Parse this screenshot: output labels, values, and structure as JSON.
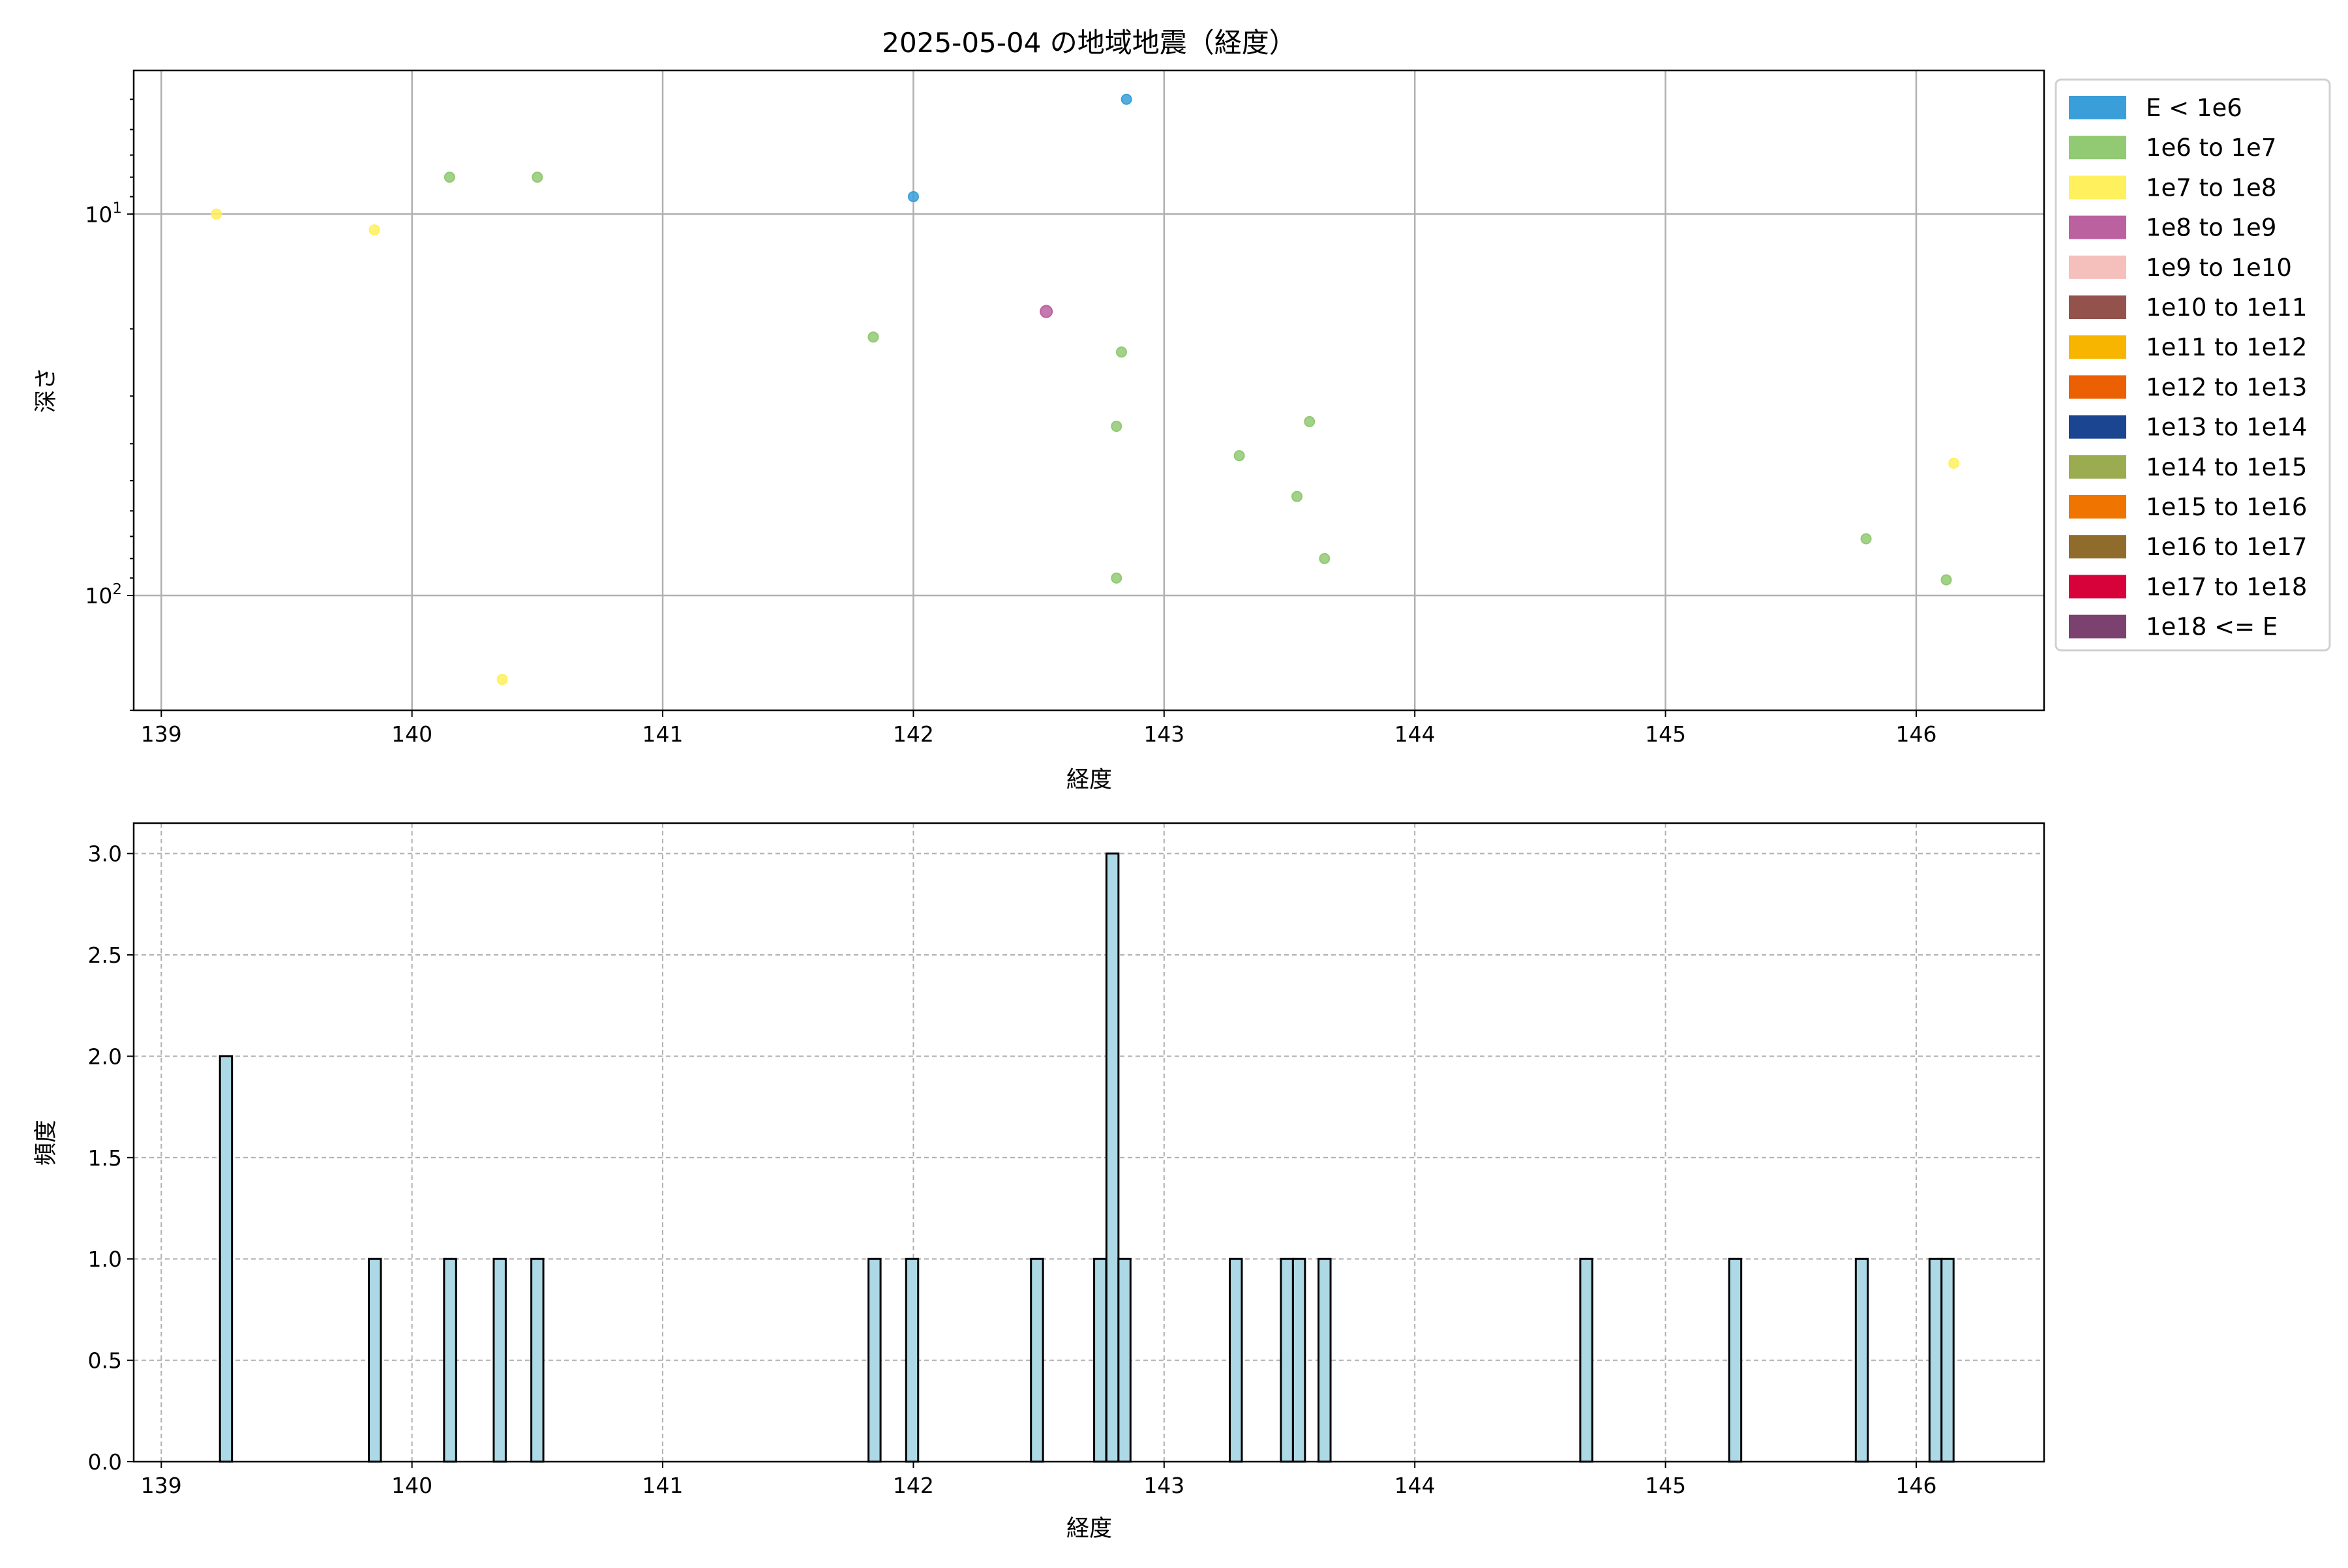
{
  "chart_data": [
    {
      "type": "scatter",
      "title": "2025-05-04 の地域地震（経度）",
      "xlabel": "経度",
      "ylabel": "深さ",
      "xlim": [
        138.89,
        146.51
      ],
      "ylim": [
        200,
        4.2
      ],
      "yscale": "log",
      "yinverted": true,
      "xticks": [
        139,
        140,
        141,
        142,
        143,
        144,
        145,
        146
      ],
      "yticks": [
        {
          "value": 10,
          "label": "10",
          "exp": "1"
        },
        {
          "value": 100,
          "label": "10",
          "exp": "2"
        }
      ],
      "grid": true,
      "legend_placement": "outside-right",
      "legend": [
        {
          "label": "E < 1e6",
          "color": "#3a9fd8"
        },
        {
          "label": "1e6 to 1e7",
          "color": "#92c973"
        },
        {
          "label": "1e7 to 1e8",
          "color": "#fff05e"
        },
        {
          "label": "1e8 to 1e9",
          "color": "#bb61a0"
        },
        {
          "label": "1e9 to 1e10",
          "color": "#f5bfbc"
        },
        {
          "label": "1e10 to 1e11",
          "color": "#94524d"
        },
        {
          "label": "1e11 to 1e12",
          "color": "#f7b500"
        },
        {
          "label": "1e12 to 1e13",
          "color": "#eb6003"
        },
        {
          "label": "1e13 to 1e14",
          "color": "#1b4590"
        },
        {
          "label": "1e14 to 1e15",
          "color": "#9bab4f"
        },
        {
          "label": "1e15 to 1e16",
          "color": "#ef7500"
        },
        {
          "label": "1e16 to 1e17",
          "color": "#906c2c"
        },
        {
          "label": "1e17 to 1e18",
          "color": "#d8023a"
        },
        {
          "label": "1e18 <= E",
          "color": "#7b416f"
        }
      ],
      "points": [
        {
          "x": 142.85,
          "y": 5,
          "class": 0
        },
        {
          "x": 142.0,
          "y": 9,
          "class": 0
        },
        {
          "x": 140.15,
          "y": 8,
          "class": 1
        },
        {
          "x": 140.5,
          "y": 8,
          "class": 1
        },
        {
          "x": 141.84,
          "y": 21,
          "class": 1
        },
        {
          "x": 142.83,
          "y": 23,
          "class": 1
        },
        {
          "x": 142.81,
          "y": 36,
          "class": 1
        },
        {
          "x": 143.58,
          "y": 35,
          "class": 1
        },
        {
          "x": 143.3,
          "y": 43,
          "class": 1
        },
        {
          "x": 143.53,
          "y": 55,
          "class": 1
        },
        {
          "x": 145.8,
          "y": 71,
          "class": 1
        },
        {
          "x": 143.64,
          "y": 80,
          "class": 1
        },
        {
          "x": 142.81,
          "y": 90,
          "class": 1
        },
        {
          "x": 146.12,
          "y": 91,
          "class": 1
        },
        {
          "x": 139.22,
          "y": 10,
          "class": 2
        },
        {
          "x": 139.85,
          "y": 11,
          "class": 2
        },
        {
          "x": 140.36,
          "y": 166,
          "class": 2
        },
        {
          "x": 146.15,
          "y": 45,
          "class": 2
        },
        {
          "x": 142.53,
          "y": 18,
          "class": 3
        }
      ]
    },
    {
      "type": "bar",
      "xlabel": "経度",
      "ylabel": "頻度",
      "xlim": [
        138.89,
        146.51
      ],
      "ylim": [
        0,
        3.15
      ],
      "xticks": [
        139,
        140,
        141,
        142,
        143,
        144,
        145,
        146
      ],
      "yticks": [
        "0.0",
        "0.5",
        "1.0",
        "1.5",
        "2.0",
        "2.5",
        "3.0"
      ],
      "grid": "dashed",
      "bar_color": "#add8e6",
      "edge_color": "#000000",
      "bin_width": 0.048,
      "bins": [
        {
          "x": 139.258,
          "count": 2
        },
        {
          "x": 139.852,
          "count": 1
        },
        {
          "x": 140.152,
          "count": 1
        },
        {
          "x": 140.35,
          "count": 1
        },
        {
          "x": 140.5,
          "count": 1
        },
        {
          "x": 141.845,
          "count": 1
        },
        {
          "x": 141.995,
          "count": 1
        },
        {
          "x": 142.493,
          "count": 1
        },
        {
          "x": 142.745,
          "count": 1
        },
        {
          "x": 142.794,
          "count": 3
        },
        {
          "x": 142.842,
          "count": 1
        },
        {
          "x": 143.286,
          "count": 1
        },
        {
          "x": 143.49,
          "count": 1
        },
        {
          "x": 143.538,
          "count": 1
        },
        {
          "x": 143.64,
          "count": 1
        },
        {
          "x": 144.684,
          "count": 1
        },
        {
          "x": 145.278,
          "count": 1
        },
        {
          "x": 145.783,
          "count": 1
        },
        {
          "x": 146.077,
          "count": 1
        },
        {
          "x": 146.125,
          "count": 1
        }
      ]
    }
  ]
}
